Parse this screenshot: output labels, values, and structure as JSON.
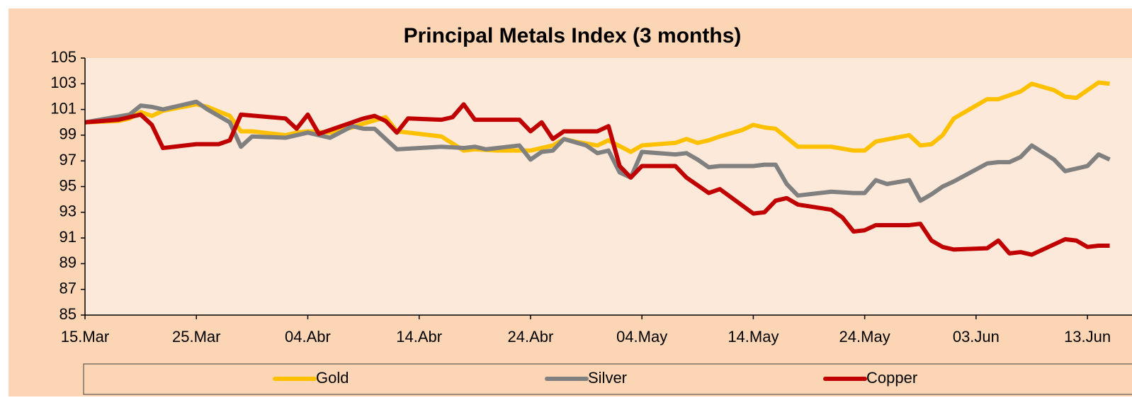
{
  "chart_data": {
    "type": "line",
    "title": "Principal Metals Index (3 months)",
    "xlim": [
      0,
      94
    ],
    "ylim": [
      85,
      105
    ],
    "xticks": [
      {
        "value": 0,
        "label": "15.Mar"
      },
      {
        "value": 10,
        "label": "25.Mar"
      },
      {
        "value": 20,
        "label": "04.Abr"
      },
      {
        "value": 30,
        "label": "14.Abr"
      },
      {
        "value": 40,
        "label": "24.Abr"
      },
      {
        "value": 50,
        "label": "04.May"
      },
      {
        "value": 60,
        "label": "14.May"
      },
      {
        "value": 70,
        "label": "24.May"
      },
      {
        "value": 80,
        "label": "03.Jun"
      },
      {
        "value": 90,
        "label": "13.Jun"
      }
    ],
    "yticks": [
      85,
      87,
      89,
      91,
      93,
      95,
      97,
      99,
      101,
      103,
      105
    ],
    "legend": "bottom",
    "series": [
      {
        "name": "Gold",
        "color": "#ffc000",
        "x": [
          0,
          3,
          4,
          5,
          6,
          7,
          10,
          11,
          13,
          14,
          15,
          18,
          19,
          20,
          22,
          24,
          25,
          27,
          28,
          29,
          32,
          34,
          35,
          37,
          40,
          41,
          42,
          43,
          44,
          46,
          47,
          49,
          50,
          53,
          54,
          55,
          56,
          57,
          59,
          60,
          61,
          62,
          64,
          67,
          69,
          70,
          71,
          74,
          75,
          76,
          77,
          78,
          80,
          81,
          82,
          84,
          85,
          87,
          88,
          89,
          90,
          91,
          92
        ],
        "values": [
          100,
          100.1,
          100.3,
          100.8,
          100.5,
          100.9,
          101.4,
          101.2,
          100.5,
          99.3,
          99.3,
          99,
          99.2,
          99.3,
          99.2,
          99.6,
          99.9,
          100.4,
          99.3,
          99.2,
          98.9,
          97.8,
          97.9,
          97.8,
          97.8,
          98,
          98.2,
          98.7,
          98.5,
          98.2,
          98.6,
          97.7,
          98.2,
          98.4,
          98.7,
          98.4,
          98.6,
          98.9,
          99.4,
          99.8,
          99.6,
          99.5,
          98.1,
          98.1,
          97.8,
          97.8,
          98.5,
          99,
          98.2,
          98.3,
          99,
          100.3,
          101.3,
          101.8,
          101.8,
          102.4,
          103,
          102.5,
          102,
          101.9,
          102.5,
          103.1,
          103
        ]
      },
      {
        "name": "Silver",
        "color": "#808080",
        "x": [
          0,
          4,
          5,
          6,
          7,
          10,
          11,
          13,
          14,
          15,
          18,
          20,
          22,
          24,
          25,
          26,
          28,
          32,
          34,
          35,
          36,
          39,
          40,
          41,
          42,
          43,
          45,
          46,
          47,
          48,
          49,
          50,
          53,
          54,
          55,
          56,
          57,
          60,
          61,
          62,
          63,
          64,
          67,
          69,
          70,
          71,
          72,
          74,
          75,
          76,
          77,
          78,
          81,
          82,
          83,
          84,
          85,
          87,
          88,
          90,
          91,
          92
        ],
        "values": [
          100,
          100.6,
          101.3,
          101.2,
          101,
          101.6,
          101,
          100,
          98.1,
          98.9,
          98.8,
          99.2,
          98.8,
          99.7,
          99.5,
          99.5,
          97.9,
          98.1,
          98,
          98.1,
          97.9,
          98.2,
          97.1,
          97.7,
          97.8,
          98.7,
          98.2,
          97.6,
          97.8,
          96.1,
          95.7,
          97.7,
          97.5,
          97.6,
          97.1,
          96.5,
          96.6,
          96.6,
          96.7,
          96.7,
          95.2,
          94.3,
          94.6,
          94.5,
          94.5,
          95.5,
          95.2,
          95.5,
          93.9,
          94.4,
          95,
          95.4,
          96.8,
          96.9,
          96.9,
          97.3,
          98.2,
          97.1,
          96.2,
          96.6,
          97.5,
          97.1
        ]
      },
      {
        "name": "Copper",
        "color": "#c00000",
        "x": [
          0,
          3,
          5,
          6,
          7,
          10,
          12,
          13,
          14,
          18,
          19,
          20,
          21,
          25,
          26,
          27,
          28,
          29,
          32,
          33,
          34,
          35,
          39,
          40,
          41,
          42,
          43,
          46,
          47,
          48,
          49,
          50,
          53,
          54,
          56,
          57,
          60,
          61,
          62,
          63,
          64,
          67,
          68,
          69,
          70,
          71,
          74,
          75,
          76,
          77,
          78,
          81,
          82,
          83,
          84,
          85,
          88,
          89,
          90,
          91,
          92
        ],
        "values": [
          100,
          100.2,
          100.6,
          99.8,
          98,
          98.3,
          98.3,
          98.6,
          100.6,
          100.3,
          99.5,
          100.6,
          99.1,
          100.3,
          100.5,
          100.1,
          99.2,
          100.3,
          100.2,
          100.4,
          101.4,
          100.2,
          100.2,
          99.3,
          100,
          98.7,
          99.3,
          99.3,
          99.7,
          96.6,
          95.7,
          96.6,
          96.6,
          95.7,
          94.5,
          94.8,
          92.9,
          93,
          93.9,
          94.1,
          93.6,
          93.2,
          92.6,
          91.5,
          91.6,
          92,
          92,
          92.1,
          90.8,
          90.3,
          90.1,
          90.2,
          90.8,
          89.8,
          89.9,
          89.7,
          90.9,
          90.8,
          90.3,
          90.4,
          90.4
        ]
      }
    ]
  }
}
